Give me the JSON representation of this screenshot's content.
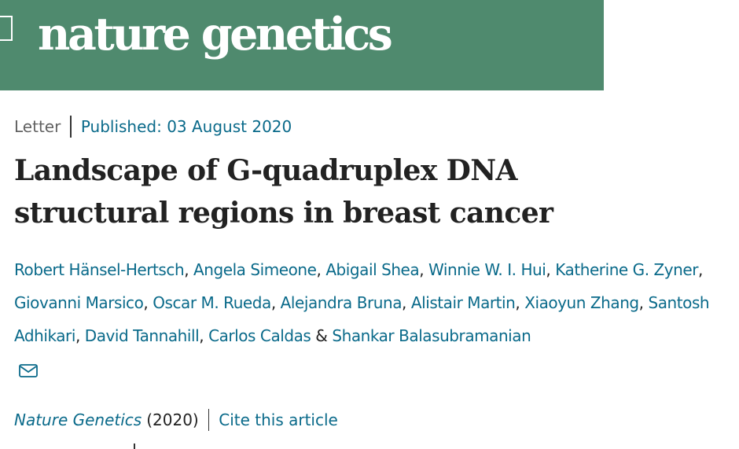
{
  "header": {
    "brand": "nature genetics"
  },
  "article": {
    "type": "Letter",
    "published": "Published: 03 August 2020",
    "title_line1": "Landscape of G-quadruplex DNA",
    "title_line2": "structural regions in breast cancer",
    "authors": [
      "Robert Hänsel-Hertsch",
      "Angela Simeone",
      "Abigail Shea",
      "Winnie W. I. Hui",
      "Katherine G. Zyner",
      "Giovanni Marsico",
      "Oscar M. Rueda",
      "Alejandra Bruna",
      "Alistair Martin",
      "Xiaoyun Zhang",
      "Santosh Adhikari",
      "David Tannahill",
      "Carlos Caldas",
      "Shankar Balasubramanian"
    ],
    "separator": ", ",
    "last_separator": " & ",
    "corresponding_icon": "mail-icon",
    "journal": "Nature Genetics",
    "year": "(2020)",
    "cite_label": "Cite this article"
  },
  "colors": {
    "banner": "#4f8a6e",
    "link": "#0a6a8a",
    "text": "#222222"
  }
}
